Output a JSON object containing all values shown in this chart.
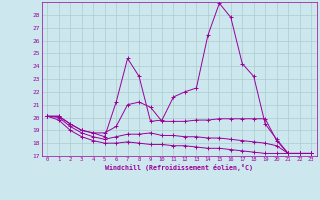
{
  "xlabel": "Windchill (Refroidissement éolien,°C)",
  "bg_color": "#cce8ee",
  "grid_color": "#aacccc",
  "line_color": "#990099",
  "xlim": [
    -0.5,
    23.5
  ],
  "ylim": [
    17,
    29
  ],
  "yticks": [
    17,
    18,
    19,
    20,
    21,
    22,
    23,
    24,
    25,
    26,
    27,
    28
  ],
  "xticks": [
    0,
    1,
    2,
    3,
    4,
    5,
    6,
    7,
    8,
    9,
    10,
    11,
    12,
    13,
    14,
    15,
    16,
    17,
    18,
    19,
    20,
    21,
    22,
    23
  ],
  "series": [
    [
      20.1,
      20.1,
      19.5,
      19.0,
      18.8,
      18.5,
      21.2,
      24.6,
      23.2,
      19.7,
      19.8,
      21.6,
      22.0,
      22.3,
      26.4,
      28.9,
      27.8,
      24.2,
      23.2,
      19.5,
      18.3,
      17.2,
      17.2,
      17.2
    ],
    [
      20.1,
      20.1,
      19.5,
      19.0,
      18.8,
      18.8,
      19.3,
      21.0,
      21.2,
      20.8,
      19.7,
      19.7,
      19.7,
      19.8,
      19.8,
      19.9,
      19.9,
      19.9,
      19.9,
      19.9,
      18.2,
      17.2,
      17.2,
      17.2
    ],
    [
      20.1,
      20.0,
      19.3,
      18.8,
      18.5,
      18.3,
      18.5,
      18.7,
      18.7,
      18.8,
      18.6,
      18.6,
      18.5,
      18.5,
      18.4,
      18.4,
      18.3,
      18.2,
      18.1,
      18.0,
      17.8,
      17.2,
      17.2,
      17.2
    ],
    [
      20.1,
      19.8,
      19.0,
      18.5,
      18.2,
      18.0,
      18.0,
      18.1,
      18.0,
      17.9,
      17.9,
      17.8,
      17.8,
      17.7,
      17.6,
      17.6,
      17.5,
      17.4,
      17.3,
      17.2,
      17.2,
      17.2,
      17.2,
      17.2
    ]
  ]
}
